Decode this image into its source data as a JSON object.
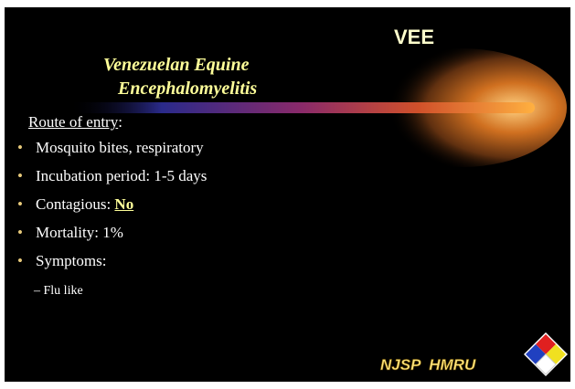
{
  "title": "VEE",
  "subtitle": [
    "Venezuelan Equine",
    "Encephalomyelitis"
  ],
  "heading": {
    "text": "Route of entry",
    "suffix": ":"
  },
  "bullets": [
    {
      "text": "Mosquito bites, respiratory"
    },
    {
      "text": "Incubation period: 1-5 days"
    },
    {
      "text": "Contagious: ",
      "emphasis": "No"
    },
    {
      "text": "Mortality: 1%"
    },
    {
      "text": "Symptoms:"
    }
  ],
  "sub_bullets": [
    "Flu like"
  ],
  "footer": "NJSP  HMRU"
}
